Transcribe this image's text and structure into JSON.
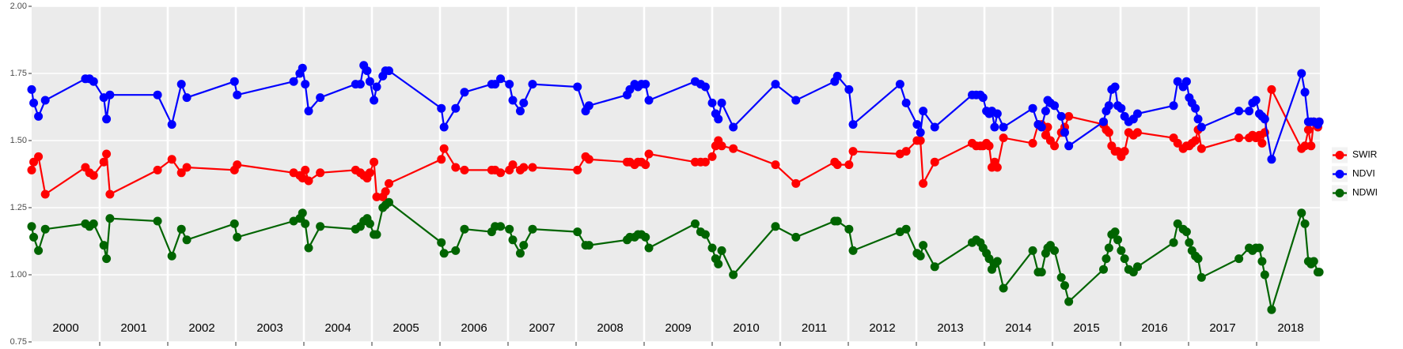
{
  "chart_data": {
    "type": "line",
    "x": [
      2000.0,
      2000.03,
      2000.1,
      2000.2,
      2000.79,
      2000.85,
      2000.91,
      2001.06,
      2001.1,
      2001.15,
      2001.85,
      2002.06,
      2002.2,
      2002.28,
      2002.98,
      2003.02,
      2003.85,
      2003.94,
      2003.98,
      2004.02,
      2004.07,
      2004.24,
      2004.76,
      2004.83,
      2004.88,
      2004.93,
      2004.97,
      2005.03,
      2005.07,
      2005.16,
      2005.2,
      2005.25,
      2006.02,
      2006.06,
      2006.23,
      2006.36,
      2006.76,
      2006.81,
      2006.89,
      2007.02,
      2007.07,
      2007.18,
      2007.23,
      2007.36,
      2008.02,
      2008.14,
      2008.19,
      2008.75,
      2008.79,
      2008.86,
      2008.91,
      2008.96,
      2009.02,
      2009.07,
      2009.75,
      2009.83,
      2009.9,
      2010.0,
      2010.05,
      2010.09,
      2010.14,
      2010.31,
      2010.93,
      2011.23,
      2011.8,
      2011.84,
      2012.01,
      2012.07,
      2012.76,
      2012.85,
      2013.01,
      2013.06,
      2013.1,
      2013.27,
      2013.82,
      2013.88,
      2013.94,
      2013.98,
      2014.03,
      2014.07,
      2014.11,
      2014.15,
      2014.19,
      2014.28,
      2014.71,
      2014.79,
      2014.84,
      2014.9,
      2014.93,
      2014.97,
      2015.03,
      2015.13,
      2015.18,
      2015.24,
      2015.75,
      2015.79,
      2015.83,
      2015.87,
      2015.92,
      2015.96,
      2016.01,
      2016.06,
      2016.12,
      2016.19,
      2016.25,
      2016.78,
      2016.84,
      2016.92,
      2016.97,
      2017.01,
      2017.05,
      2017.1,
      2017.14,
      2017.19,
      2017.74,
      2017.89,
      2017.94,
      2017.99,
      2018.04,
      2018.08,
      2018.12,
      2018.22,
      2018.66,
      2018.71,
      2018.76,
      2018.8,
      2018.84,
      2018.9,
      2018.92
    ],
    "series": [
      {
        "name": "SWIR",
        "color": "#ff0000",
        "values": [
          1.39,
          1.42,
          1.44,
          1.3,
          1.4,
          1.38,
          1.37,
          1.42,
          1.45,
          1.3,
          1.39,
          1.43,
          1.38,
          1.4,
          1.39,
          1.41,
          1.38,
          1.37,
          1.36,
          1.39,
          1.35,
          1.38,
          1.39,
          1.38,
          1.37,
          1.36,
          1.38,
          1.42,
          1.29,
          1.29,
          1.31,
          1.34,
          1.43,
          1.47,
          1.4,
          1.39,
          1.39,
          1.39,
          1.38,
          1.39,
          1.41,
          1.39,
          1.4,
          1.4,
          1.39,
          1.44,
          1.43,
          1.42,
          1.42,
          1.41,
          1.42,
          1.42,
          1.41,
          1.45,
          1.42,
          1.42,
          1.42,
          1.44,
          1.48,
          1.5,
          1.48,
          1.47,
          1.41,
          1.34,
          1.42,
          1.41,
          1.41,
          1.46,
          1.45,
          1.46,
          1.5,
          1.5,
          1.34,
          1.42,
          1.49,
          1.48,
          1.48,
          1.48,
          1.49,
          1.48,
          1.4,
          1.42,
          1.4,
          1.51,
          1.49,
          1.56,
          1.56,
          1.52,
          1.55,
          1.5,
          1.48,
          1.53,
          1.55,
          1.59,
          1.56,
          1.54,
          1.53,
          1.48,
          1.46,
          1.46,
          1.44,
          1.46,
          1.53,
          1.52,
          1.53,
          1.51,
          1.49,
          1.47,
          1.48,
          1.48,
          1.49,
          1.5,
          1.54,
          1.47,
          1.51,
          1.51,
          1.52,
          1.51,
          1.52,
          1.49,
          1.53,
          1.69,
          1.47,
          1.48,
          1.54,
          1.48,
          1.57,
          1.55,
          1.57
        ]
      },
      {
        "name": "NDVI",
        "color": "#0000ff",
        "values": [
          1.69,
          1.64,
          1.59,
          1.65,
          1.73,
          1.73,
          1.72,
          1.66,
          1.58,
          1.67,
          1.67,
          1.56,
          1.71,
          1.66,
          1.72,
          1.67,
          1.72,
          1.75,
          1.77,
          1.71,
          1.61,
          1.66,
          1.71,
          1.71,
          1.78,
          1.76,
          1.72,
          1.65,
          1.7,
          1.74,
          1.76,
          1.76,
          1.62,
          1.55,
          1.62,
          1.68,
          1.71,
          1.71,
          1.73,
          1.71,
          1.65,
          1.61,
          1.64,
          1.71,
          1.7,
          1.61,
          1.63,
          1.67,
          1.69,
          1.71,
          1.7,
          1.71,
          1.71,
          1.65,
          1.72,
          1.71,
          1.7,
          1.64,
          1.6,
          1.58,
          1.64,
          1.55,
          1.71,
          1.65,
          1.72,
          1.74,
          1.69,
          1.56,
          1.71,
          1.64,
          1.56,
          1.53,
          1.61,
          1.55,
          1.67,
          1.67,
          1.67,
          1.66,
          1.61,
          1.6,
          1.61,
          1.55,
          1.6,
          1.55,
          1.62,
          1.56,
          1.55,
          1.61,
          1.65,
          1.64,
          1.63,
          1.59,
          1.53,
          1.48,
          1.57,
          1.61,
          1.63,
          1.69,
          1.7,
          1.63,
          1.62,
          1.59,
          1.57,
          1.58,
          1.6,
          1.63,
          1.72,
          1.7,
          1.72,
          1.66,
          1.64,
          1.62,
          1.58,
          1.55,
          1.61,
          1.61,
          1.64,
          1.65,
          1.6,
          1.59,
          1.58,
          1.43,
          1.75,
          1.68,
          1.57,
          1.57,
          1.57,
          1.56,
          1.57
        ]
      },
      {
        "name": "NDWI",
        "color": "#006400",
        "values": [
          1.18,
          1.14,
          1.09,
          1.17,
          1.19,
          1.18,
          1.19,
          1.11,
          1.06,
          1.21,
          1.2,
          1.07,
          1.17,
          1.13,
          1.19,
          1.14,
          1.2,
          1.21,
          1.23,
          1.19,
          1.1,
          1.18,
          1.17,
          1.18,
          1.2,
          1.21,
          1.19,
          1.15,
          1.15,
          1.25,
          1.26,
          1.27,
          1.12,
          1.08,
          1.09,
          1.17,
          1.16,
          1.18,
          1.18,
          1.17,
          1.13,
          1.08,
          1.11,
          1.17,
          1.16,
          1.11,
          1.11,
          1.13,
          1.14,
          1.14,
          1.15,
          1.15,
          1.14,
          1.1,
          1.19,
          1.16,
          1.15,
          1.1,
          1.06,
          1.04,
          1.09,
          1.0,
          1.18,
          1.14,
          1.2,
          1.2,
          1.17,
          1.09,
          1.16,
          1.17,
          1.08,
          1.07,
          1.11,
          1.03,
          1.12,
          1.13,
          1.12,
          1.1,
          1.08,
          1.06,
          1.02,
          1.04,
          1.05,
          0.95,
          1.09,
          1.01,
          1.01,
          1.08,
          1.1,
          1.11,
          1.09,
          0.99,
          0.96,
          0.9,
          1.02,
          1.06,
          1.1,
          1.15,
          1.16,
          1.13,
          1.09,
          1.06,
          1.02,
          1.01,
          1.03,
          1.12,
          1.19,
          1.17,
          1.16,
          1.12,
          1.09,
          1.07,
          1.06,
          0.99,
          1.06,
          1.1,
          1.09,
          1.1,
          1.1,
          1.05,
          1.0,
          0.87,
          1.23,
          1.19,
          1.05,
          1.04,
          1.05,
          1.01,
          1.01
        ]
      }
    ],
    "xlim": [
      2000,
      2018.93
    ],
    "xticks": [
      {
        "value": 2000.5,
        "label": "2000"
      },
      {
        "value": 2001.5,
        "label": "2001"
      },
      {
        "value": 2002.5,
        "label": "2002"
      },
      {
        "value": 2003.5,
        "label": "2003"
      },
      {
        "value": 2004.5,
        "label": "2004"
      },
      {
        "value": 2005.5,
        "label": "2005"
      },
      {
        "value": 2006.5,
        "label": "2006"
      },
      {
        "value": 2007.5,
        "label": "2007"
      },
      {
        "value": 2008.5,
        "label": "2008"
      },
      {
        "value": 2009.5,
        "label": "2009"
      },
      {
        "value": 2010.5,
        "label": "2010"
      },
      {
        "value": 2011.5,
        "label": "2011"
      },
      {
        "value": 2012.5,
        "label": "2012"
      },
      {
        "value": 2013.5,
        "label": "2013"
      },
      {
        "value": 2014.5,
        "label": "2014"
      },
      {
        "value": 2015.5,
        "label": "2015"
      },
      {
        "value": 2016.5,
        "label": "2016"
      },
      {
        "value": 2017.5,
        "label": "2017"
      },
      {
        "value": 2018.5,
        "label": "2018"
      }
    ],
    "year_lines": [
      2001,
      2002,
      2003,
      2004,
      2005,
      2006,
      2007,
      2008,
      2009,
      2010,
      2011,
      2012,
      2013,
      2014,
      2015,
      2016,
      2017,
      2018
    ],
    "ylim": [
      0.75,
      2
    ],
    "yticks": [
      0.75,
      {
        "value": 1,
        "label": "1.00"
      },
      1.25,
      {
        "value": 1.5,
        "label": "1.50"
      },
      1.75,
      {
        "value": 2,
        "label": "2.00"
      }
    ],
    "grid": true,
    "legend": "right"
  }
}
